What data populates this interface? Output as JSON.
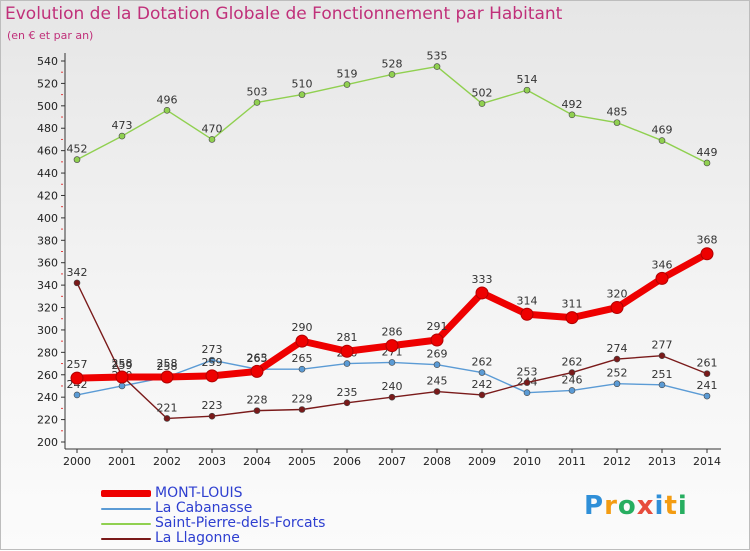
{
  "header": {
    "title": "Evolution de la Dotation Globale de Fonctionnement par Habitant",
    "subtitle": "(en € et par an)"
  },
  "chart_data": {
    "type": "line",
    "title": "Evolution de la Dotation Globale de Fonctionnement par Habitant",
    "subtitle": "(en € et par an)",
    "x": [
      "2000",
      "2001",
      "2002",
      "2003",
      "2004",
      "2005",
      "2006",
      "2007",
      "2008",
      "2009",
      "2010",
      "2011",
      "2012",
      "2013",
      "2014"
    ],
    "ylim": [
      200,
      540
    ],
    "yticks": [
      200,
      220,
      240,
      260,
      280,
      300,
      320,
      340,
      360,
      380,
      400,
      420,
      440,
      460,
      480,
      500,
      520,
      540
    ],
    "grid": false,
    "legend_position": "bottom-left",
    "series": [
      {
        "name": "MONT-LOUIS",
        "color": "#ee0000",
        "values": [
          257,
          258,
          258,
          259,
          263,
          290,
          281,
          286,
          291,
          333,
          314,
          311,
          320,
          346,
          368
        ]
      },
      {
        "name": "La Cabanasse",
        "color": "#5b9bd5",
        "values": [
          242,
          250,
          258,
          273,
          265,
          265,
          270,
          271,
          269,
          262,
          244,
          246,
          252,
          251,
          241
        ]
      },
      {
        "name": "Saint-Pierre-dels-Forcats",
        "color": "#90d050",
        "values": [
          452,
          473,
          496,
          470,
          503,
          510,
          519,
          528,
          535,
          502,
          514,
          492,
          485,
          469,
          449
        ]
      },
      {
        "name": "La Llagonne",
        "color": "#7a1a1a",
        "values": [
          342,
          259,
          221,
          223,
          228,
          229,
          235,
          240,
          245,
          242,
          253,
          262,
          274,
          277,
          261
        ]
      }
    ]
  },
  "logo": {
    "letters": [
      "P",
      "r",
      "o",
      "x",
      "i",
      "t",
      "i"
    ],
    "colors": [
      "#2f8fd8",
      "#f39c12",
      "#27ae60",
      "#e74c3c",
      "#2f8fd8",
      "#f39c12",
      "#27ae60"
    ]
  }
}
